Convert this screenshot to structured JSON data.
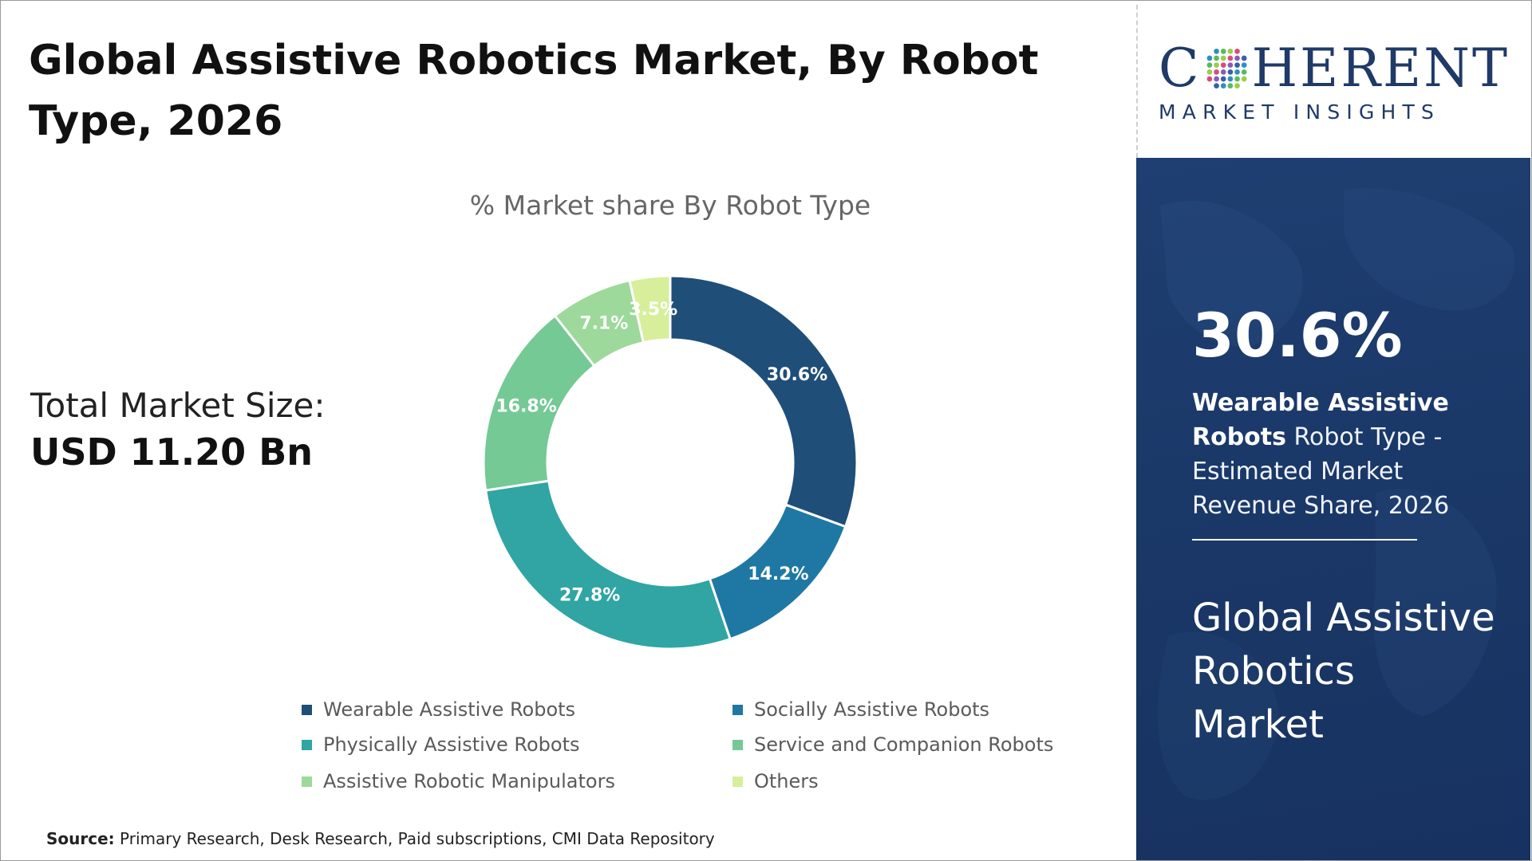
{
  "header": {
    "title": "Global Assistive Robotics Market, By Robot Type, 2026"
  },
  "market": {
    "label": "Total Market Size:",
    "value": "USD 11.20 Bn"
  },
  "brand": {
    "name_first": "C",
    "name_rest": "HERENT",
    "tagline": "MARKET INSIGHTS"
  },
  "highlight": {
    "value": "30.6%",
    "segment": "Wearable Assistive Robots",
    "description": " Robot Type - Estimated Market Revenue Share, 2026",
    "market_name": "Global Assistive Robotics Market"
  },
  "source": {
    "label": "Source:",
    "text": " Primary Research, Desk Research, Paid subscriptions, CMI Data Repository"
  },
  "chart_data": {
    "type": "pie",
    "title": "% Market share By Robot Type",
    "donut": true,
    "legend_position": "bottom",
    "categories": [
      "Wearable Assistive Robots",
      "Socially Assistive Robots",
      "Physically Assistive Robots",
      "Service and Companion Robots",
      "Assistive Robotic Manipulators",
      "Others"
    ],
    "values": [
      30.6,
      14.2,
      27.8,
      16.8,
      7.1,
      3.5
    ],
    "labels": [
      "30.6%",
      "14.2%",
      "27.8%",
      "16.8%",
      "7.1%",
      "3.5%"
    ],
    "colors": [
      "#1f4e79",
      "#1f78a4",
      "#30a5a3",
      "#74c995",
      "#9cd99a",
      "#d7ef9b"
    ]
  }
}
